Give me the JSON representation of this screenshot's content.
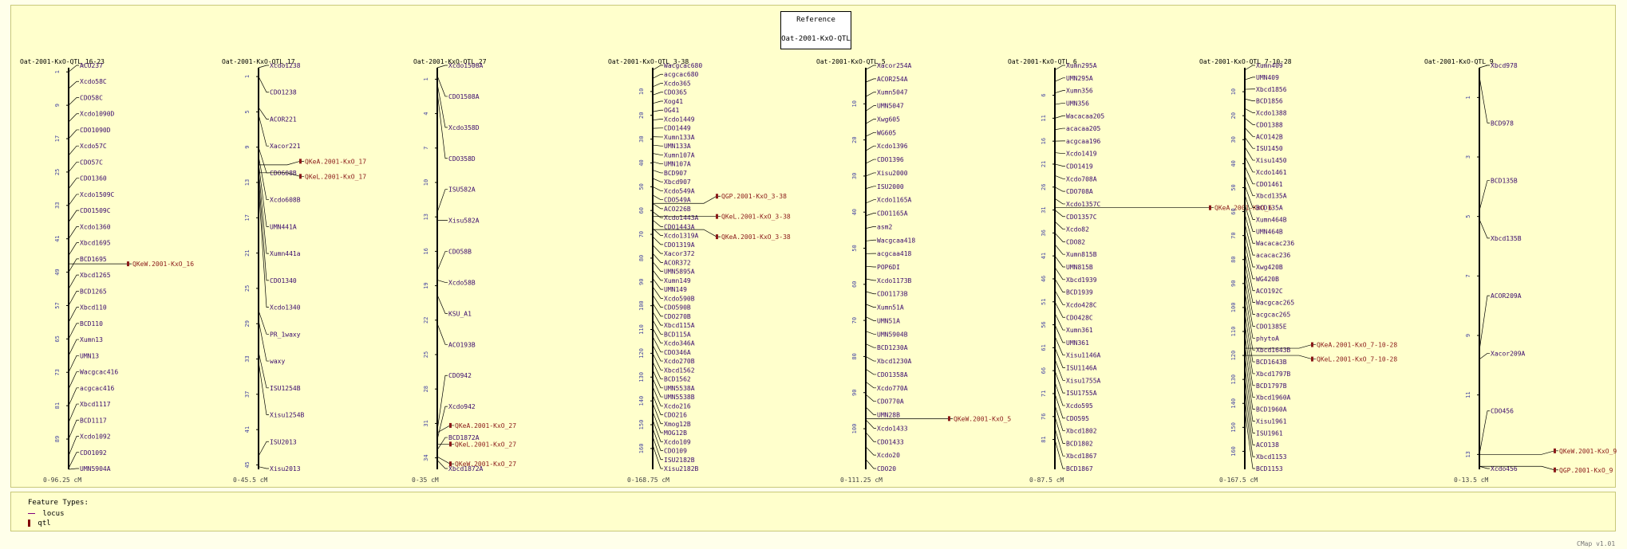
{
  "reference": {
    "line1": "Reference",
    "line2": "Oat-2001-KxO-QTL"
  },
  "legend": {
    "title": "Feature Types:",
    "items": [
      {
        "label": "locus",
        "color": "#800080"
      },
      {
        "label": "qtl",
        "color": "#800000"
      }
    ]
  },
  "version": "CMap v1.01",
  "colors": {
    "locus": "#3a0a6e",
    "qtl": "#8b1a1a",
    "axis": "#000000",
    "tick": "#4040a0"
  },
  "maps": [
    {
      "title": "Oat-2001-KxO-QTL_16-23",
      "range_label": "0-96.25 cM",
      "max": 96.25,
      "ticks": [
        1,
        9,
        17,
        25,
        33,
        41,
        49,
        57,
        65,
        73,
        81,
        89
      ],
      "loci": [
        [
          "ACO237",
          1
        ],
        [
          "Xcdo58C",
          5
        ],
        [
          "CDO58C",
          9
        ],
        [
          "Xcdo1090D",
          13
        ],
        [
          "CDO1090D",
          17
        ],
        [
          "Xcdo57C",
          21
        ],
        [
          "CDO57C",
          25
        ],
        [
          "CDO1360",
          29
        ],
        [
          "Xcdo1509C",
          33
        ],
        [
          "CDO1509C",
          37
        ],
        [
          "Xcdo1360",
          41
        ],
        [
          "Xbcd1695",
          45
        ],
        [
          "BCD1695",
          49
        ],
        [
          "Xbcd1265",
          53
        ],
        [
          "BCD1265",
          57
        ],
        [
          "Xbcd110",
          61
        ],
        [
          "BCD110",
          65
        ],
        [
          "Xumn13",
          69
        ],
        [
          "UMN13",
          73
        ],
        [
          "Wacgcac416",
          77
        ],
        [
          "acgcac416",
          81
        ],
        [
          "Xbcd1117",
          85
        ],
        [
          "BCD1117",
          89
        ],
        [
          "Xcdo1092",
          93
        ],
        [
          "CDO1092",
          96
        ],
        [
          "UMN5904A",
          96.25
        ]
      ],
      "qtls": [
        [
          "QKeW.2001-KxO_16",
          47
        ]
      ]
    },
    {
      "title": "Oat-2001-KxO-QTL_17",
      "range_label": "0-45.5 cM",
      "max": 45.5,
      "ticks": [
        1,
        5,
        9,
        13,
        17,
        21,
        25,
        29,
        33,
        37,
        41,
        45
      ],
      "loci": [
        [
          "Xcdo1238",
          0
        ],
        [
          "CDO1238",
          1
        ],
        [
          "ACOR221",
          4.5
        ],
        [
          "Xacor221",
          5.3
        ],
        [
          "CDO608B",
          9
        ],
        [
          "Xcdo608B",
          10
        ],
        [
          "UMN441A",
          10.8
        ],
        [
          "Xumn441a",
          11.6
        ],
        [
          "CDO1340",
          12.4
        ],
        [
          "Xcdo1340",
          13.4
        ],
        [
          "PR_1waxy",
          27.5
        ],
        [
          "waxy",
          28.6
        ],
        [
          "ISU1254B",
          32.2
        ],
        [
          "Xisu1254B",
          33.3
        ],
        [
          "ISU2013",
          44
        ],
        [
          "Xisu2013",
          45.2
        ]
      ],
      "qtls": [
        [
          "QKeA.2001-KxO_17",
          11
        ],
        [
          "QKeL.2001-KxO_17",
          11.9
        ]
      ]
    },
    {
      "title": "Oat-2001-KxO-QTL_27",
      "range_label": "0-35 cM",
      "max": 35,
      "ticks": [
        1,
        4,
        7,
        10,
        13,
        16,
        19,
        22,
        25,
        28,
        31,
        34
      ],
      "loci": [
        [
          "Xcdo1508A",
          0
        ],
        [
          "CDO1508A",
          0.7
        ],
        [
          "Xcdo358D",
          1.4
        ],
        [
          "CDO358D",
          2.1
        ],
        [
          "ISU582A",
          12.6
        ],
        [
          "Xisu582A",
          13.3
        ],
        [
          "CDO58B",
          17.7
        ],
        [
          "Xcdo58B",
          18.5
        ],
        [
          "KSU_A1",
          19.8
        ],
        [
          "ACO193B",
          22.3
        ],
        [
          "CDO942",
          31.6
        ],
        [
          "Xcdo942",
          32.4
        ],
        [
          "BCD1872A",
          33.3
        ],
        [
          "Xbcd1872A",
          34.2
        ]
      ],
      "qtls": [
        [
          "QKeA.2001-KxO_27",
          31.8
        ],
        [
          "QKeL.2001-KxO_27",
          32.8
        ],
        [
          "QKeW.2001-KxO_27",
          33.9
        ]
      ]
    },
    {
      "title": "Oat-2001-KxO-QTL_3-38",
      "range_label": "0-168.75 cM",
      "max": 168.75,
      "ticks": [
        10,
        20,
        30,
        40,
        50,
        60,
        70,
        80,
        90,
        100,
        110,
        120,
        130,
        140,
        150,
        160
      ],
      "loci": [
        [
          "Wacgcac680",
          1
        ],
        [
          "acgcac680",
          4.5
        ],
        [
          "Xcdo365",
          8
        ],
        [
          "CDO365",
          11.5
        ],
        [
          "Xog41",
          15
        ],
        [
          "OG41",
          18.5
        ],
        [
          "Xcdo1449",
          22
        ],
        [
          "CDO1449",
          25.5
        ],
        [
          "Xumn133A",
          29
        ],
        [
          "UMN133A",
          32.5
        ],
        [
          "Xumn107A",
          36
        ],
        [
          "UMN107A",
          39.5
        ],
        [
          "BCD907",
          43
        ],
        [
          "Xbcd907",
          46.5
        ],
        [
          "Xcdo549A",
          50
        ],
        [
          "CDO549A",
          53.5
        ],
        [
          "ACO226B",
          57
        ],
        [
          "Xcdo1443A",
          60.5
        ],
        [
          "CDO1443A",
          64
        ],
        [
          "Xcdo1319A",
          67.5
        ],
        [
          "CDO1319A",
          71
        ],
        [
          "Xacor372",
          74.5
        ],
        [
          "ACOR372",
          78
        ],
        [
          "UMN5895A",
          81.5
        ],
        [
          "Xumn149",
          85
        ],
        [
          "UMN149",
          88.5
        ],
        [
          "Xcdo590B",
          92
        ],
        [
          "CDO590B",
          95.5
        ],
        [
          "CDO270B",
          99
        ],
        [
          "Xbcd115A",
          102.5
        ],
        [
          "BCD115A",
          106
        ],
        [
          "Xcdo346A",
          109.5
        ],
        [
          "CDO346A",
          113
        ],
        [
          "Xcdo270B",
          116.5
        ],
        [
          "Xbcd1562",
          120
        ],
        [
          "BCD1562",
          123.5
        ],
        [
          "UMN5538A",
          127
        ],
        [
          "UMN5538B",
          130.5
        ],
        [
          "Xcdo216",
          134
        ],
        [
          "CDO216",
          137.5
        ],
        [
          "Xmog12B",
          141
        ],
        [
          "MOG12B",
          144.5
        ],
        [
          "Xcdo109",
          148
        ],
        [
          "CDO109",
          151.5
        ],
        [
          "ISU2182B",
          155
        ],
        [
          "Xisu2182B",
          158.5
        ]
      ],
      "qtls": [
        [
          "QGP.2001-KxO_3-38",
          57
        ],
        [
          "QKeL.2001-KxO_3-38",
          62.5
        ],
        [
          "QKeA.2001-KxO_3-38",
          68
        ]
      ]
    },
    {
      "title": "Oat-2001-KxO-QTL_5",
      "range_label": "0-111.25 cM",
      "max": 111.25,
      "ticks": [
        10,
        20,
        30,
        40,
        50,
        60,
        70,
        80,
        90,
        100
      ],
      "loci": [
        [
          "Xacor254A",
          0.5
        ],
        [
          "ACOR254A",
          4
        ],
        [
          "Xumn5047",
          8
        ],
        [
          "UMN5047",
          12
        ],
        [
          "Xwg605",
          15.5
        ],
        [
          "WG605",
          19
        ],
        [
          "Xcdo1396",
          23
        ],
        [
          "CDO1396",
          26.5
        ],
        [
          "Xisu2000",
          30
        ],
        [
          "ISU2000",
          33.5
        ],
        [
          "Xcdo1165A",
          37.5
        ],
        [
          "CDO1165A",
          41
        ],
        [
          "asm2",
          44.5
        ],
        [
          "Wacgcaa418",
          48
        ],
        [
          "acgcaa418",
          51.5
        ],
        [
          "POP6DI",
          55
        ],
        [
          "Xcdo1173B",
          58.5
        ],
        [
          "CDO1173B",
          62
        ],
        [
          "Xumn51A",
          65.5
        ],
        [
          "UMN51A",
          69
        ],
        [
          "UMN5904B",
          73
        ],
        [
          "BCD1230A",
          76.5
        ],
        [
          "Xbcd1230A",
          80
        ],
        [
          "CDO1358A",
          83.5
        ],
        [
          "Xcdo770A",
          87
        ],
        [
          "CDO770A",
          90.5
        ],
        [
          "UMN28B",
          94
        ],
        [
          "Xcdo1433",
          97.5
        ],
        [
          "CDO1433",
          101
        ],
        [
          "Xcdo20",
          105
        ],
        [
          "CDO20",
          108.5
        ]
      ],
      "qtls": [
        [
          "QKeW.2001-KxO_5",
          97.2
        ]
      ]
    },
    {
      "title": "Oat-2001-KxO-QTL_6",
      "range_label": "0-87.5 cM",
      "max": 87.5,
      "ticks": [
        6,
        11,
        16,
        21,
        26,
        31,
        36,
        41,
        46,
        51,
        56,
        61,
        66,
        71,
        76,
        81
      ],
      "loci": [
        [
          "Xumn295A",
          0.5
        ],
        [
          "UMN295A",
          3
        ],
        [
          "Xumn356",
          5.5
        ],
        [
          "UMN356",
          8
        ],
        [
          "Wacacaa205",
          11
        ],
        [
          "acacaa205",
          13.5
        ],
        [
          "acgcaa196",
          16
        ],
        [
          "Xcdo1419",
          18.5
        ],
        [
          "CDO1419",
          21
        ],
        [
          "Xcdo708A",
          23.5
        ],
        [
          "CDO708A",
          26
        ],
        [
          "Xcdo1357C",
          28.5
        ],
        [
          "CDO1357C",
          31
        ],
        [
          "Xcdo82",
          33.5
        ],
        [
          "CDO82",
          36
        ],
        [
          "Xumn815B",
          38.5
        ],
        [
          "UMN815B",
          41
        ],
        [
          "Xbcd1939",
          43.5
        ],
        [
          "BCD1939",
          46
        ],
        [
          "Xcdo428C",
          48.5
        ],
        [
          "CDO428C",
          51
        ],
        [
          "Xumn361",
          53.5
        ],
        [
          "UMN361",
          56
        ],
        [
          "Xisu1146A",
          58.5
        ],
        [
          "ISU1146A",
          61
        ],
        [
          "Xisu1755A",
          63.5
        ],
        [
          "ISU1755A",
          66
        ],
        [
          "Xcdo595",
          68.5
        ],
        [
          "CDO595",
          71
        ],
        [
          "Xbcd1802",
          73.5
        ],
        [
          "BCD1802",
          76
        ],
        [
          "Xbcd1867",
          78.5
        ],
        [
          "BCD1867",
          81
        ]
      ],
      "qtls": [
        [
          "QKeA.2001-KxO_6",
          30.5
        ]
      ]
    },
    {
      "title": "Oat-2001-KxO-QTL_7-10-28",
      "range_label": "0-167.5 cM",
      "max": 167.5,
      "ticks": [
        10,
        20,
        30,
        40,
        50,
        60,
        70,
        80,
        90,
        100,
        110,
        120,
        130,
        140,
        150,
        160
      ],
      "loci": [
        [
          "Xumn409",
          1
        ],
        [
          "UMN409",
          5
        ],
        [
          "Xbcd1856",
          9
        ],
        [
          "BCD1856",
          13
        ],
        [
          "Xcdo1388",
          17
        ],
        [
          "CDO1388",
          21
        ],
        [
          "ACO142B",
          25
        ],
        [
          "ISU1450",
          29
        ],
        [
          "Xisu1450",
          33
        ],
        [
          "Xcdo1461",
          37
        ],
        [
          "CDO1461",
          41
        ],
        [
          "Xbcd135A",
          45
        ],
        [
          "BCD135A",
          49
        ],
        [
          "Xumn464B",
          53
        ],
        [
          "UMN464B",
          57
        ],
        [
          "Wacacac236",
          61
        ],
        [
          "acacac236",
          65
        ],
        [
          "Xwg420B",
          69
        ],
        [
          "WG420B",
          73
        ],
        [
          "ACO192C",
          77
        ],
        [
          "Wacgcac265",
          81
        ],
        [
          "acgcac265",
          85
        ],
        [
          "CDO1385E",
          89
        ],
        [
          "phytoA",
          93.5
        ],
        [
          "Xbcd1643B",
          98
        ],
        [
          "BCD1643B",
          102.5
        ],
        [
          "Xbcd1797B",
          107
        ],
        [
          "BCD1797B",
          111.5
        ],
        [
          "Xbcd1960A",
          116
        ],
        [
          "BCD1960A",
          120.5
        ],
        [
          "Xisu1961",
          125
        ],
        [
          "ISU1961",
          129.5
        ],
        [
          "ACO138",
          134
        ],
        [
          "Xbcd1153",
          138.5
        ],
        [
          "BCD1153",
          143
        ]
      ],
      "qtls": [
        [
          "QKeA.2001-KxO_7-10-28",
          117
        ],
        [
          "QKeL.2001-KxO_7-10-28",
          120
        ]
      ]
    },
    {
      "title": "Oat-2001-KxO-QTL_9",
      "range_label": "0-13.5 cM",
      "max": 13.5,
      "ticks": [
        1,
        3,
        5,
        7,
        9,
        11,
        13
      ],
      "loci": [
        [
          "Xbcd978",
          0
        ],
        [
          "BCD978",
          0.3
        ],
        [
          "BCD135B",
          4.8
        ],
        [
          "Xbcd135B",
          5.1
        ],
        [
          "ACOR209A",
          9.5
        ],
        [
          "Xacor209A",
          9.8
        ],
        [
          "CDO456",
          13
        ],
        [
          "Xcdo456",
          13.4
        ]
      ],
      "qtls": [
        [
          "QKeW.2001-KxO_9",
          13
        ],
        [
          "QGP.2001-KxO_9",
          13.4
        ]
      ]
    }
  ]
}
